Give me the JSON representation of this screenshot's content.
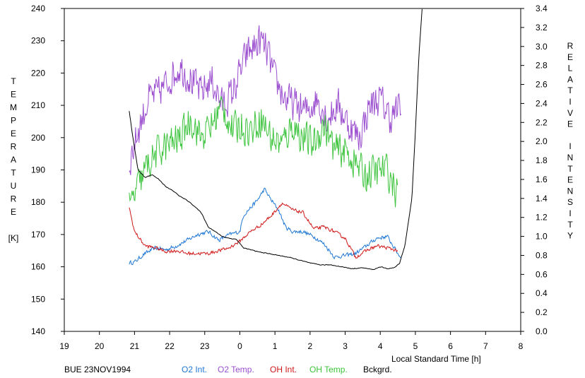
{
  "chart_data": {
    "type": "line",
    "title": "",
    "xlabel": "Local Standard Time [h]",
    "ylabel_left": "TEMPERATURE [K]",
    "ylabel_right": "RELATIVE INTENSITY",
    "ylabel_left_letters": [
      "T",
      "E",
      "M",
      "P",
      "E",
      "R",
      "A",
      "T",
      "U",
      "R",
      "E",
      "",
      "[K]"
    ],
    "ylabel_right_letters": [
      "R",
      "E",
      "L",
      "A",
      "T",
      "I",
      "V",
      "E",
      "",
      "I",
      "N",
      "T",
      "E",
      "N",
      "S",
      "I",
      "T",
      "Y"
    ],
    "caption": "BUE 23NOV1994",
    "x_ticks": [
      "19",
      "20",
      "21",
      "22",
      "23",
      "0",
      "1",
      "2",
      "3",
      "4",
      "5",
      "6",
      "7",
      "8"
    ],
    "xlim": [
      19,
      32
    ],
    "ylim_left": [
      140,
      240
    ],
    "ylim_right": [
      0.0,
      3.4
    ],
    "y_ticks_left": [
      140,
      150,
      160,
      170,
      180,
      190,
      200,
      210,
      220,
      230,
      240
    ],
    "y_ticks_right": [
      "0.0",
      "0.2",
      "0.4",
      "0.6",
      "0.8",
      "1.0",
      "1.2",
      "1.4",
      "1.6",
      "1.8",
      "2.0",
      "2.2",
      "2.4",
      "2.6",
      "2.8",
      "3.0",
      "3.2",
      "3.4"
    ],
    "grid": false,
    "legend_position": "bottom",
    "series": [
      {
        "name": "O2 Int.",
        "color": "#1f77d4",
        "axis": "right",
        "jitter": 0.035,
        "x": [
          20.85,
          21.0,
          21.3,
          21.6,
          21.9,
          22.2,
          22.5,
          22.8,
          23.1,
          23.4,
          23.7,
          24.0,
          24.1,
          24.3,
          24.5,
          24.7,
          24.9,
          25.1,
          25.3,
          25.5,
          25.8,
          26.1,
          26.4,
          26.7,
          27.0,
          27.3,
          27.6,
          27.9,
          28.2,
          28.5,
          28.6
        ],
        "y": [
          0.72,
          0.73,
          0.82,
          0.88,
          0.86,
          0.9,
          0.96,
          1.02,
          1.05,
          0.96,
          1.02,
          1.05,
          1.22,
          1.3,
          1.38,
          1.5,
          1.38,
          1.28,
          1.1,
          1.05,
          1.05,
          1.0,
          0.92,
          0.78,
          0.8,
          0.82,
          0.9,
          0.98,
          1.0,
          0.82,
          0.77
        ]
      },
      {
        "name": "O2 Temp.",
        "color": "#9b4fcf",
        "axis": "left",
        "jitter": 9,
        "x": [
          20.85,
          21.1,
          21.4,
          21.7,
          22.0,
          22.3,
          22.6,
          22.9,
          23.2,
          23.5,
          23.8,
          24.0,
          24.2,
          24.4,
          24.6,
          24.8,
          25.0,
          25.3,
          25.6,
          25.9,
          26.2,
          26.5,
          26.8,
          27.1,
          27.4,
          27.7,
          28.0,
          28.3,
          28.6
        ],
        "y": [
          192,
          202,
          212,
          214,
          218,
          222,
          218,
          214,
          218,
          210,
          214,
          220,
          226,
          228,
          230,
          226,
          218,
          212,
          210,
          208,
          212,
          206,
          210,
          204,
          200,
          210,
          212,
          206,
          210
        ]
      },
      {
        "name": "OH Int.",
        "color": "#d01818",
        "axis": "right",
        "jitter": 0.03,
        "x": [
          20.85,
          21.0,
          21.3,
          21.6,
          21.9,
          22.2,
          22.5,
          22.8,
          23.1,
          23.4,
          23.7,
          24.0,
          24.3,
          24.6,
          24.9,
          25.2,
          25.5,
          25.8,
          26.1,
          26.4,
          26.7,
          27.0,
          27.3,
          27.6,
          27.9,
          28.2,
          28.5
        ],
        "y": [
          1.3,
          1.05,
          0.9,
          0.88,
          0.84,
          0.85,
          0.82,
          0.82,
          0.82,
          0.85,
          0.88,
          0.95,
          1.05,
          1.12,
          1.22,
          1.35,
          1.28,
          1.25,
          1.08,
          1.1,
          1.05,
          0.98,
          0.78,
          0.85,
          0.9,
          0.88,
          0.85
        ]
      },
      {
        "name": "OH Temp.",
        "color": "#3ec43e",
        "axis": "left",
        "jitter": 9,
        "x": [
          20.85,
          21.1,
          21.4,
          21.7,
          22.0,
          22.3,
          22.6,
          22.9,
          23.2,
          23.5,
          23.8,
          24.0,
          24.3,
          24.6,
          24.9,
          25.2,
          25.5,
          25.8,
          26.1,
          26.4,
          26.7,
          27.0,
          27.3,
          27.6,
          27.9,
          28.2,
          28.5
        ],
        "y": [
          178,
          185,
          192,
          196,
          198,
          200,
          206,
          200,
          204,
          210,
          202,
          204,
          202,
          206,
          200,
          198,
          204,
          200,
          198,
          204,
          196,
          196,
          192,
          188,
          190,
          190,
          182
        ]
      },
      {
        "name": "Bckgrd.",
        "color": "#000000",
        "axis": "right",
        "jitter": 0.006,
        "x": [
          20.85,
          20.95,
          21.1,
          21.3,
          21.5,
          21.7,
          21.9,
          22.1,
          22.3,
          22.5,
          22.7,
          22.9,
          23.1,
          23.3,
          23.5,
          23.7,
          23.9,
          24.1,
          24.3,
          24.5,
          24.8,
          25.1,
          25.4,
          25.7,
          26.0,
          26.3,
          26.6,
          26.9,
          27.2,
          27.5,
          27.8,
          28.0,
          28.2,
          28.4,
          28.5,
          28.55,
          28.7,
          28.9,
          29.0,
          29.1,
          29.2
        ],
        "y": [
          2.32,
          2.05,
          1.7,
          1.62,
          1.65,
          1.6,
          1.52,
          1.48,
          1.42,
          1.38,
          1.32,
          1.25,
          1.1,
          1.05,
          1.0,
          0.98,
          0.97,
          0.88,
          0.86,
          0.84,
          0.82,
          0.8,
          0.78,
          0.75,
          0.72,
          0.7,
          0.7,
          0.68,
          0.66,
          0.67,
          0.65,
          0.68,
          0.66,
          0.67,
          0.7,
          0.72,
          0.9,
          1.4,
          2.1,
          2.9,
          3.45
        ]
      }
    ]
  }
}
